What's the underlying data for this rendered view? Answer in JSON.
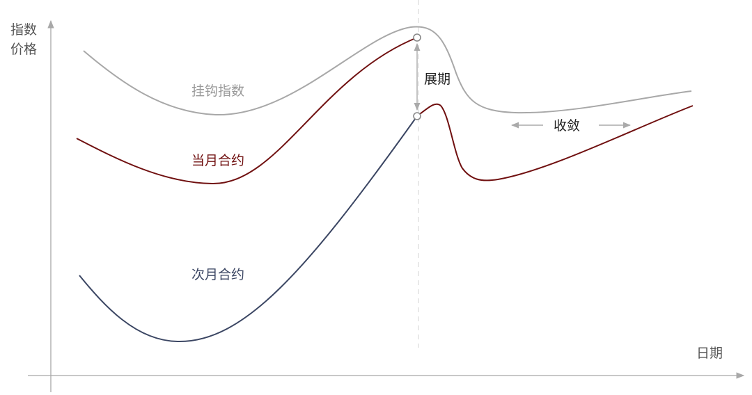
{
  "axes": {
    "y_label_line1": "指数",
    "y_label_line2": "价格",
    "x_label": "日期"
  },
  "curves": {
    "index": {
      "label": "挂钩指数",
      "color": "#a8a8a8"
    },
    "front": {
      "label": "当月合约",
      "color": "#701010"
    },
    "next": {
      "label": "次月合约",
      "color": "#3b4663"
    }
  },
  "annotations": {
    "roll": "展期",
    "convergence": "收敛"
  },
  "colors": {
    "axis": "#a8a8a8",
    "guide": "#dddddd",
    "annotation": "#aaaaaa",
    "text": "#222222"
  }
}
